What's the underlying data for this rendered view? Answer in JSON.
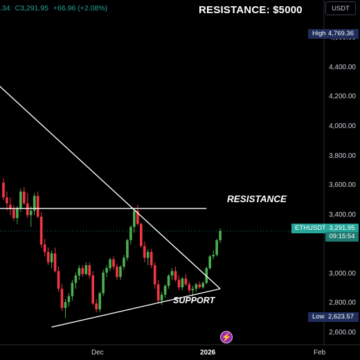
{
  "header": {
    "ohlc_open_partial": ".34",
    "ohlc_close": "C3,291.95",
    "ohlc_change": "+66.96 (+2.08%)",
    "headline": "RESISTANCE: $5000",
    "currency": "USDT"
  },
  "axis": {
    "ticks": [
      "4,600.00",
      "4,400.00",
      "4,200.00",
      "4,000.00",
      "3,800.00",
      "3,600.00",
      "3,400.00",
      "3,000.00",
      "2,800.00",
      "2,600.00"
    ],
    "x_labels": [
      "Dec",
      "2026",
      "Feb"
    ]
  },
  "tags": {
    "high_label": "High",
    "high_value": "4,769.36",
    "low_label": "Low",
    "low_value": "2,623.57",
    "symbol": "ETHUSDT",
    "price": "3,291.95",
    "countdown": "09:15:54"
  },
  "annotations": {
    "resistance": "RESISTANCE",
    "support": "SUPPORT"
  },
  "colors": {
    "up": "#26a69a",
    "down": "#ef5350",
    "up_candle": "#4caf50",
    "down_candle": "#f23645",
    "background": "#000000",
    "line": "#ffffff"
  },
  "icons": {
    "logo": "lightning-bolt-icon"
  },
  "chart_data": {
    "type": "candlestick",
    "symbol": "ETHUSDT",
    "interval": "1D",
    "ylim": [
      2520,
      4860
    ],
    "y_ticks": [
      2600,
      2800,
      3000,
      3200,
      3400,
      3600,
      3800,
      4000,
      4200,
      4400,
      4600
    ],
    "high": 4769.36,
    "low": 2623.57,
    "last": 3291.95,
    "candles": [
      [
        3620,
        3650,
        3500,
        3520
      ],
      [
        3520,
        3560,
        3430,
        3480
      ],
      [
        3470,
        3520,
        3400,
        3440
      ],
      [
        3440,
        3470,
        3360,
        3380
      ],
      [
        3380,
        3460,
        3340,
        3450
      ],
      [
        3450,
        3580,
        3420,
        3560
      ],
      [
        3560,
        3590,
        3470,
        3480
      ],
      [
        3480,
        3550,
        3380,
        3400
      ],
      [
        3400,
        3460,
        3320,
        3430
      ],
      [
        3430,
        3550,
        3400,
        3530
      ],
      [
        3530,
        3560,
        3380,
        3390
      ],
      [
        3390,
        3420,
        3180,
        3200
      ],
      [
        3200,
        3240,
        3120,
        3150
      ],
      [
        3150,
        3180,
        3060,
        3080
      ],
      [
        3080,
        3160,
        3040,
        3140
      ],
      [
        3140,
        3180,
        3010,
        3020
      ],
      [
        3020,
        3050,
        2880,
        2900
      ],
      [
        2900,
        2930,
        2750,
        2770
      ],
      [
        2770,
        2830,
        2700,
        2810
      ],
      [
        2810,
        2870,
        2780,
        2850
      ],
      [
        2850,
        2960,
        2820,
        2940
      ],
      [
        2940,
        3010,
        2900,
        2990
      ],
      [
        2990,
        3060,
        2960,
        3040
      ],
      [
        3040,
        3060,
        2980,
        3000
      ],
      [
        3000,
        3080,
        2990,
        3060
      ],
      [
        3060,
        3080,
        2970,
        2990
      ],
      [
        2990,
        3020,
        2790,
        2800
      ],
      [
        2800,
        2830,
        2740,
        2760
      ],
      [
        2760,
        2880,
        2740,
        2870
      ],
      [
        2870,
        3030,
        2850,
        3010
      ],
      [
        3010,
        3060,
        2980,
        3040
      ],
      [
        3040,
        3110,
        3020,
        3100
      ],
      [
        3100,
        3120,
        3030,
        3050
      ],
      [
        3050,
        3070,
        2960,
        2980
      ],
      [
        2980,
        3060,
        2960,
        3050
      ],
      [
        3050,
        3130,
        3030,
        3110
      ],
      [
        3110,
        3240,
        3090,
        3230
      ],
      [
        3230,
        3330,
        3200,
        3320
      ],
      [
        3320,
        3450,
        3280,
        3430
      ],
      [
        3430,
        3470,
        3330,
        3340
      ],
      [
        3340,
        3350,
        3180,
        3190
      ],
      [
        3190,
        3220,
        3080,
        3110
      ],
      [
        3110,
        3170,
        3060,
        3150
      ],
      [
        3150,
        3170,
        3040,
        3060
      ],
      [
        3060,
        3080,
        2900,
        2930
      ],
      [
        2930,
        2960,
        2800,
        2820
      ],
      [
        2820,
        2880,
        2790,
        2860
      ],
      [
        2860,
        2930,
        2840,
        2920
      ],
      [
        2920,
        3000,
        2900,
        2990
      ],
      [
        2990,
        3040,
        2960,
        3020
      ],
      [
        3020,
        3050,
        2950,
        2960
      ],
      [
        2960,
        2990,
        2890,
        2910
      ],
      [
        2910,
        2980,
        2890,
        2970
      ],
      [
        2970,
        3000,
        2920,
        2930
      ],
      [
        2930,
        2950,
        2870,
        2890
      ],
      [
        2890,
        2920,
        2850,
        2900
      ],
      [
        2900,
        2940,
        2880,
        2930
      ],
      [
        2930,
        2950,
        2900,
        2910
      ],
      [
        2910,
        2950,
        2900,
        2940
      ],
      [
        2940,
        3050,
        2930,
        3040
      ],
      [
        3040,
        3130,
        3030,
        3120
      ],
      [
        3120,
        3160,
        3100,
        3130
      ],
      [
        3130,
        3240,
        3120,
        3230
      ],
      [
        3230,
        3310,
        3210,
        3292
      ]
    ],
    "trendlines": [
      {
        "name": "descending",
        "points": [
          [
            -6,
            4380
          ],
          [
            63,
            2900
          ]
        ]
      },
      {
        "name": "RESISTANCE",
        "points": [
          [
            -6,
            3445
          ],
          [
            59,
            3445
          ]
        ]
      },
      {
        "name": "SUPPORT",
        "points": [
          [
            14,
            2640
          ],
          [
            63,
            2900
          ]
        ]
      }
    ],
    "x_labels": [
      {
        "label": "Dec",
        "index": 24
      },
      {
        "label": "2026",
        "index": 55
      },
      {
        "label": "Feb",
        "index": 86
      }
    ]
  }
}
